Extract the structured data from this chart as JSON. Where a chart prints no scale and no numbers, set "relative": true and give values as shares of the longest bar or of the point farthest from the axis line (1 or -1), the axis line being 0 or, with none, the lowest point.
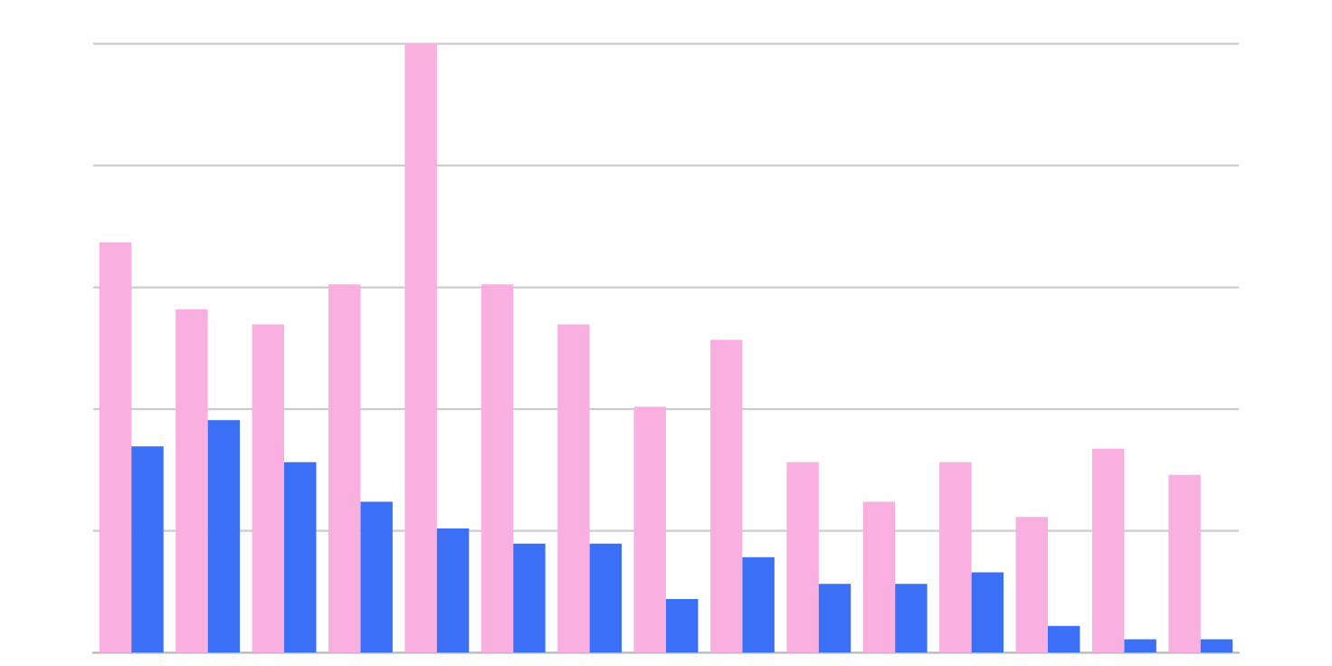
{
  "chart_data": {
    "type": "bar",
    "relative": true,
    "grid": "y",
    "categories": [
      null,
      null,
      null,
      null,
      null,
      null,
      null,
      null,
      null,
      null,
      null,
      null,
      null,
      null,
      null
    ],
    "series": [
      {
        "color": "#f9afdf",
        "values": [
          0.674,
          0.564,
          0.539,
          0.605,
          1,
          0.605,
          0.539,
          0.404,
          0.514,
          0.313,
          0.248,
          0.313,
          0.223,
          0.335,
          0.292
        ]
      },
      {
        "color": "#3b6ff5",
        "values": [
          0.339,
          0.382,
          0.313,
          0.248,
          0.204,
          0.179,
          0.179,
          0.088,
          0.157,
          0.113,
          0.113,
          0.132,
          0.044,
          0.022,
          0.022
        ]
      }
    ]
  }
}
